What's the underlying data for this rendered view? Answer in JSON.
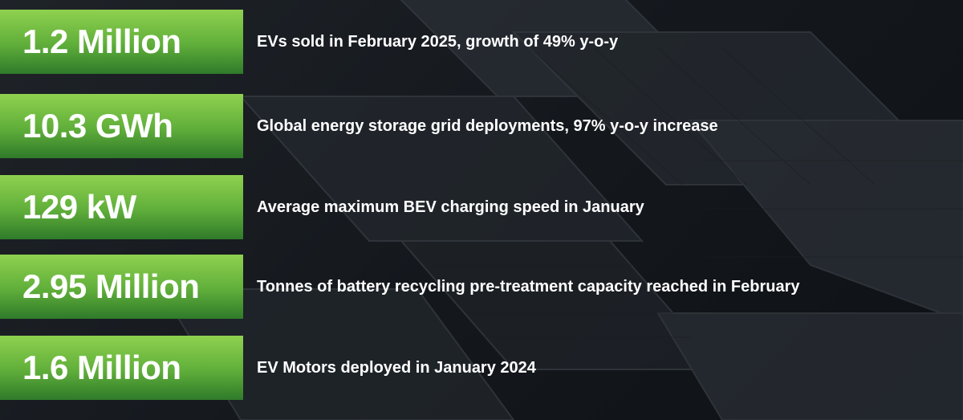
{
  "items": [
    {
      "stat": "1.2 Million",
      "description": "EVs sold in February 2025, growth of 49% y-o-y"
    },
    {
      "stat": "10.3 GWh",
      "description": "Global energy storage grid deployments, 97% y-o-y increase"
    },
    {
      "stat": "129 kW",
      "description": "Average maximum BEV charging speed in January"
    },
    {
      "stat": "2.95 Million",
      "description": "Tonnes of battery recycling pre-treatment capacity reached in February"
    },
    {
      "stat": "1.6 Million",
      "description": "EV Motors deployed in January 2024"
    }
  ]
}
